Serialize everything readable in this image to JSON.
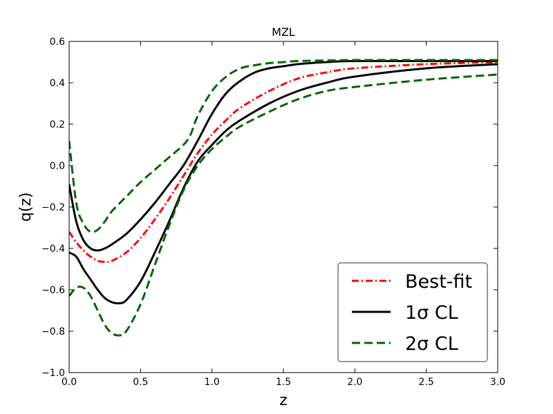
{
  "chart_data": {
    "type": "line",
    "title": "MZL",
    "xlabel": "z",
    "ylabel": "q(z)",
    "xlim": [
      0,
      3
    ],
    "ylim": [
      -1.0,
      0.6
    ],
    "xticks": [
      0.0,
      0.5,
      1.0,
      1.5,
      2.0,
      2.5,
      3.0
    ],
    "xtick_labels": [
      "0.0",
      "0.5",
      "1.0",
      "1.5",
      "2.0",
      "2.5",
      "3.0"
    ],
    "yticks": [
      -1.0,
      -0.8,
      -0.6,
      -0.4,
      -0.2,
      0.0,
      0.2,
      0.4,
      0.6
    ],
    "ytick_labels": [
      "−1.0",
      "−0.8",
      "−0.6",
      "−0.4",
      "−0.2",
      "0.0",
      "0.2",
      "0.4",
      "0.6"
    ],
    "legend_position": "bottom-right",
    "series": [
      {
        "name": "Best-fit",
        "legend_label": "Best-fit",
        "color": "#ff0000",
        "style": "dashdot",
        "x": [
          0.0,
          0.05,
          0.1,
          0.15,
          0.2,
          0.25,
          0.3,
          0.4,
          0.5,
          0.6,
          0.7,
          0.8,
          0.9,
          1.0,
          1.1,
          1.2,
          1.4,
          1.6,
          1.8,
          2.0,
          2.5,
          3.0
        ],
        "y": [
          -0.32,
          -0.37,
          -0.41,
          -0.44,
          -0.46,
          -0.465,
          -0.46,
          -0.42,
          -0.35,
          -0.26,
          -0.16,
          -0.05,
          0.06,
          0.15,
          0.22,
          0.28,
          0.36,
          0.42,
          0.45,
          0.47,
          0.49,
          0.5
        ]
      },
      {
        "name": "1σ CL upper",
        "legend_label": "1σ CL",
        "color": "#000000",
        "style": "solid",
        "x": [
          0.0,
          0.05,
          0.1,
          0.15,
          0.2,
          0.25,
          0.3,
          0.4,
          0.5,
          0.6,
          0.7,
          0.8,
          0.9,
          1.0,
          1.1,
          1.2,
          1.3,
          1.4,
          1.5,
          1.6,
          1.8,
          2.0,
          2.5,
          3.0
        ],
        "y": [
          -0.09,
          -0.27,
          -0.36,
          -0.4,
          -0.41,
          -0.4,
          -0.38,
          -0.33,
          -0.26,
          -0.18,
          -0.09,
          0.0,
          0.12,
          0.25,
          0.35,
          0.41,
          0.45,
          0.47,
          0.48,
          0.49,
          0.5,
          0.505,
          0.505,
          0.505
        ]
      },
      {
        "name": "1σ CL lower",
        "legend_label": "",
        "color": "#000000",
        "style": "solid",
        "x": [
          0.0,
          0.05,
          0.1,
          0.15,
          0.2,
          0.25,
          0.3,
          0.35,
          0.4,
          0.5,
          0.6,
          0.7,
          0.8,
          0.9,
          1.0,
          1.1,
          1.2,
          1.4,
          1.6,
          1.8,
          2.0,
          2.5,
          3.0
        ],
        "y": [
          -0.42,
          -0.44,
          -0.5,
          -0.55,
          -0.6,
          -0.64,
          -0.66,
          -0.665,
          -0.65,
          -0.56,
          -0.42,
          -0.27,
          -0.11,
          0.02,
          0.1,
          0.17,
          0.22,
          0.3,
          0.36,
          0.4,
          0.43,
          0.47,
          0.49
        ]
      },
      {
        "name": "2σ CL upper",
        "legend_label": "2σ CL",
        "color": "#006400",
        "style": "dashed",
        "x": [
          0.0,
          0.05,
          0.1,
          0.15,
          0.2,
          0.25,
          0.3,
          0.4,
          0.5,
          0.6,
          0.7,
          0.8,
          0.85,
          0.9,
          1.0,
          1.1,
          1.2,
          1.3,
          1.4,
          1.5,
          1.6,
          1.8,
          2.0,
          2.5,
          3.0
        ],
        "y": [
          0.12,
          -0.18,
          -0.28,
          -0.32,
          -0.31,
          -0.27,
          -0.22,
          -0.15,
          -0.08,
          -0.02,
          0.04,
          0.1,
          0.15,
          0.24,
          0.36,
          0.43,
          0.47,
          0.485,
          0.495,
          0.5,
          0.505,
          0.508,
          0.51,
          0.51,
          0.51
        ]
      },
      {
        "name": "2σ CL lower",
        "legend_label": "",
        "color": "#006400",
        "style": "dashed",
        "x": [
          0.0,
          0.05,
          0.1,
          0.15,
          0.2,
          0.25,
          0.3,
          0.35,
          0.4,
          0.5,
          0.6,
          0.7,
          0.8,
          0.9,
          1.0,
          1.1,
          1.2,
          1.4,
          1.6,
          1.8,
          2.0,
          2.5,
          3.0
        ],
        "y": [
          -0.63,
          -0.59,
          -0.59,
          -0.63,
          -0.7,
          -0.77,
          -0.81,
          -0.82,
          -0.8,
          -0.67,
          -0.48,
          -0.29,
          -0.12,
          0.0,
          0.08,
          0.14,
          0.19,
          0.26,
          0.32,
          0.36,
          0.38,
          0.415,
          0.44
        ]
      }
    ]
  }
}
